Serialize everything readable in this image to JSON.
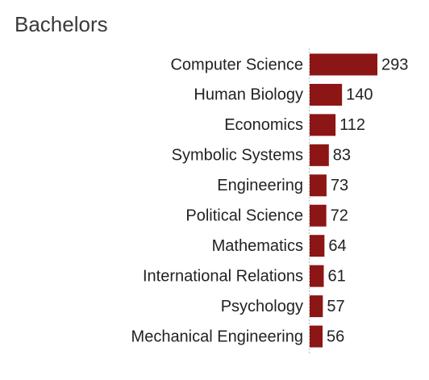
{
  "chart_data": {
    "type": "bar",
    "orientation": "horizontal",
    "title": "Bachelors",
    "categories": [
      "Computer Science",
      "Human Biology",
      "Economics",
      "Symbolic Systems",
      "Engineering",
      "Political Science",
      "Mathematics",
      "International Relations",
      "Psychology",
      "Mechanical Engineering"
    ],
    "values": [
      293,
      140,
      112,
      83,
      73,
      72,
      64,
      61,
      57,
      56
    ],
    "color": "#8c1515"
  }
}
